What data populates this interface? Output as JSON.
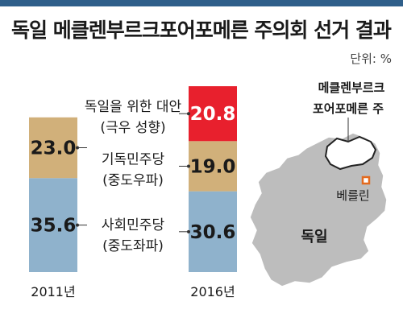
{
  "title": "독일 메클렌부르크포어포메른 주의회 선거 결과",
  "unit": "단위: %",
  "colors": {
    "spd": "#8fb2cc",
    "cdu": "#d1b07a",
    "afd": "#e8202d",
    "map_fill": "#bdbdbd",
    "map_highlight": "#ffffff",
    "city_marker": "#e36a1e"
  },
  "chart_data": {
    "type": "bar",
    "stacked": true,
    "categories": [
      "2011년",
      "2016년"
    ],
    "series": [
      {
        "name": "사회민주당",
        "sublabel": "(중도좌파)",
        "values": [
          35.6,
          30.6
        ]
      },
      {
        "name": "기독민주당",
        "sublabel": "(중도우파)",
        "values": [
          23.0,
          19.0
        ]
      },
      {
        "name": "독일을 위한 대안",
        "sublabel": "(극우 성향)",
        "values": [
          null,
          20.8
        ]
      }
    ]
  },
  "map": {
    "state_label_line1": "메클렌부르크",
    "state_label_line2": "포어포메른 주",
    "city_label": "베를린",
    "country_label": "독일"
  }
}
